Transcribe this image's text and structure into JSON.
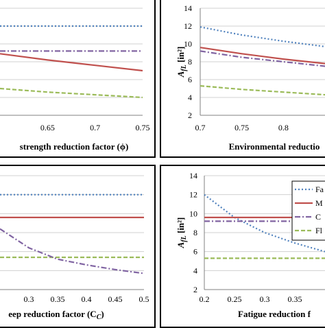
{
  "chart_data": [
    {
      "panel": "top-left",
      "type": "line",
      "xlabel": "strength reduction factor (ϕ)",
      "ylabel": "",
      "x_ticks": [
        "0.65",
        "0.7",
        "0.75"
      ],
      "y_ticks": [],
      "xlim": [
        0.6,
        0.75
      ],
      "ylim": [
        2,
        14
      ],
      "grid": true,
      "series": [
        {
          "x": [
            0.6,
            0.75
          ],
          "y": [
            12,
            12
          ],
          "color": "#4f81bd",
          "dash": "dot"
        },
        {
          "x": [
            0.6,
            0.75
          ],
          "y": [
            9.2,
            9.2
          ],
          "color": "#8064a2",
          "dash": "dashdot"
        },
        {
          "x": [
            0.6,
            0.65,
            0.7,
            0.75
          ],
          "y": [
            8.9,
            8.2,
            7.6,
            7.0
          ],
          "color": "#c0504d",
          "dash": "solid"
        },
        {
          "x": [
            0.6,
            0.65,
            0.7,
            0.75
          ],
          "y": [
            5.0,
            4.6,
            4.3,
            4.0
          ],
          "color": "#9bbb59",
          "dash": "dash"
        }
      ]
    },
    {
      "panel": "top-right",
      "type": "line",
      "xlabel": "Environmental reductio",
      "ylabel": "A_fL [in²]",
      "x_ticks": [
        "0.7",
        "0.75",
        "0.8"
      ],
      "y_ticks": [
        "2",
        "4",
        "6",
        "8",
        "10",
        "12",
        "14"
      ],
      "xlim": [
        0.7,
        0.85
      ],
      "ylim": [
        2,
        14
      ],
      "grid": true,
      "series": [
        {
          "x": [
            0.7,
            0.75,
            0.8,
            0.85
          ],
          "y": [
            11.9,
            11.0,
            10.3,
            9.7
          ],
          "color": "#4f81bd",
          "dash": "dot"
        },
        {
          "x": [
            0.7,
            0.75,
            0.8,
            0.85
          ],
          "y": [
            9.6,
            8.9,
            8.3,
            7.8
          ],
          "color": "#c0504d",
          "dash": "solid"
        },
        {
          "x": [
            0.7,
            0.75,
            0.8,
            0.85
          ],
          "y": [
            9.2,
            8.5,
            8.0,
            7.5
          ],
          "color": "#8064a2",
          "dash": "dashdot"
        },
        {
          "x": [
            0.7,
            0.75,
            0.8,
            0.85
          ],
          "y": [
            5.3,
            4.9,
            4.6,
            4.3
          ],
          "color": "#9bbb59",
          "dash": "dash"
        }
      ]
    },
    {
      "panel": "bottom-left",
      "type": "line",
      "xlabel": "eep reduction factor (C",
      "xlabel_subscript": "C",
      "xlabel_suffix": ")",
      "ylabel": "",
      "x_ticks": [
        "0.3",
        "0.35",
        "0.4",
        "0.45",
        "0.5"
      ],
      "y_ticks": [],
      "xlim": [
        0.25,
        0.5
      ],
      "ylim": [
        2,
        14
      ],
      "grid": true,
      "series": [
        {
          "x": [
            0.25,
            0.5
          ],
          "y": [
            12,
            12
          ],
          "color": "#4f81bd",
          "dash": "dot"
        },
        {
          "x": [
            0.25,
            0.5
          ],
          "y": [
            9.6,
            9.6
          ],
          "color": "#c0504d",
          "dash": "solid"
        },
        {
          "x": [
            0.25,
            0.5
          ],
          "y": [
            5.4,
            5.4
          ],
          "color": "#9bbb59",
          "dash": "dash"
        },
        {
          "x": [
            0.25,
            0.3,
            0.35,
            0.4,
            0.45,
            0.5
          ],
          "y": [
            8.4,
            6.4,
            5.2,
            4.6,
            4.1,
            3.7
          ],
          "color": "#8064a2",
          "dash": "dashdot"
        }
      ]
    },
    {
      "panel": "bottom-right",
      "type": "line",
      "xlabel": "Fatigue reduction f",
      "ylabel": "A_fL [in²]",
      "x_ticks": [
        "0.2",
        "0.25",
        "0.3",
        "0.35"
      ],
      "y_ticks": [
        "2",
        "4",
        "6",
        "8",
        "10",
        "12",
        "14"
      ],
      "xlim": [
        0.2,
        0.4
      ],
      "ylim": [
        2,
        14
      ],
      "grid": true,
      "legend_position": "top-right",
      "legend": [
        "Fa",
        "M",
        "C",
        "Fl"
      ],
      "series": [
        {
          "name": "Fa",
          "x": [
            0.2,
            0.25,
            0.3,
            0.35,
            0.4
          ],
          "y": [
            12.0,
            9.6,
            8.0,
            6.9,
            6.0
          ],
          "color": "#4f81bd",
          "dash": "dot"
        },
        {
          "name": "M",
          "x": [
            0.2,
            0.4
          ],
          "y": [
            9.6,
            9.6
          ],
          "color": "#c0504d",
          "dash": "solid"
        },
        {
          "name": "C",
          "x": [
            0.2,
            0.4
          ],
          "y": [
            9.2,
            9.2
          ],
          "color": "#8064a2",
          "dash": "dashdot"
        },
        {
          "name": "Fl",
          "x": [
            0.2,
            0.4
          ],
          "y": [
            5.3,
            5.3
          ],
          "color": "#9bbb59",
          "dash": "dash"
        }
      ]
    }
  ]
}
